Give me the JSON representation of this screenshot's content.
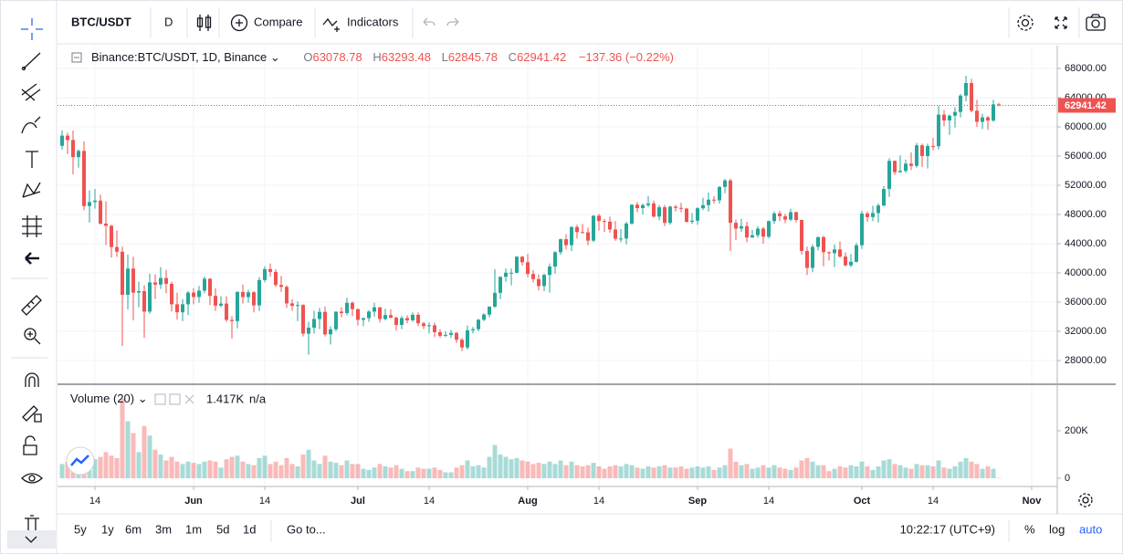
{
  "toolbar": {
    "symbol": "BTC/USDT",
    "interval": "D",
    "compare": "Compare",
    "indicators": "Indicators"
  },
  "legend": {
    "symbol": "Binance:BTC/USDT, 1D, Binance",
    "ohlc": [
      {
        "label": "O",
        "value": "63078.78"
      },
      {
        "label": "H",
        "value": "63293.48"
      },
      {
        "label": "L",
        "value": "62845.78"
      },
      {
        "label": "C",
        "value": "62941.42"
      }
    ],
    "change": "−137.36 (−0.22%)"
  },
  "volume_legend": {
    "title": "Volume (20)",
    "value": "1.417K",
    "ma": "n/a"
  },
  "bottom": {
    "ranges": [
      "5y",
      "1y",
      "6m",
      "3m",
      "1m",
      "5d",
      "1d"
    ],
    "goto": "Go to...",
    "time": "10:22:17 (UTC+9)",
    "scale": [
      "%",
      "log",
      "auto"
    ]
  },
  "chart_data": {
    "type": "candlestick",
    "grid": true,
    "up_color": "#26a69a",
    "down_color": "#ef5350",
    "last_price_color": "#ef5350",
    "categories": [
      null,
      null,
      null,
      null,
      null,
      null,
      "14",
      null,
      null,
      null,
      null,
      null,
      null,
      null,
      null,
      null,
      null,
      null,
      null,
      null,
      null,
      null,
      null,
      null,
      "Jun",
      null,
      null,
      null,
      null,
      null,
      null,
      null,
      null,
      null,
      null,
      null,
      null,
      "14",
      null,
      null,
      null,
      null,
      null,
      null,
      null,
      null,
      null,
      null,
      null,
      null,
      null,
      null,
      null,
      null,
      "Jul",
      null,
      null,
      null,
      null,
      null,
      null,
      null,
      null,
      null,
      null,
      null,
      null,
      "14",
      null,
      null,
      null,
      null,
      null,
      null,
      null,
      null,
      null,
      null,
      null,
      null,
      null,
      null,
      null,
      null,
      null,
      "Aug",
      null,
      null,
      null,
      null,
      null,
      null,
      null,
      null,
      null,
      null,
      null,
      null,
      "14",
      null,
      null,
      null,
      null,
      null,
      null,
      null,
      null,
      null,
      null,
      null,
      null,
      null,
      null,
      null,
      null,
      null,
      "Sep",
      null,
      null,
      null,
      null,
      null,
      null,
      null,
      null,
      null,
      null,
      null,
      null,
      "14",
      null,
      null,
      null,
      null,
      null,
      null,
      null,
      null,
      null,
      null,
      null,
      null,
      null,
      null,
      null,
      null,
      "Oct",
      null,
      null,
      null,
      null,
      null,
      null,
      null,
      null,
      null,
      null,
      null,
      null,
      "14",
      null,
      null,
      null,
      null,
      null,
      null,
      null,
      null,
      null,
      null,
      null,
      null,
      null,
      null,
      null,
      null,
      null,
      "Nov"
    ],
    "ohlc": [
      [
        57400,
        59500,
        56900,
        58800
      ],
      [
        58800,
        59200,
        56300,
        58200
      ],
      [
        58200,
        59500,
        53500,
        55860
      ],
      [
        55860,
        56900,
        54400,
        56700
      ],
      [
        56700,
        58000,
        48600,
        49150
      ],
      [
        49150,
        51300,
        46900,
        49700
      ],
      [
        49700,
        51500,
        48800,
        49900
      ],
      [
        49900,
        50700,
        46600,
        46750
      ],
      [
        46750,
        49800,
        43800,
        46450
      ],
      [
        46450,
        46600,
        42100,
        43540
      ],
      [
        43540,
        45800,
        42200,
        42900
      ],
      [
        42900,
        43600,
        30000,
        37000
      ],
      [
        37000,
        42500,
        35000,
        40590
      ],
      [
        40590,
        42200,
        33500,
        37300
      ],
      [
        37300,
        38800,
        35300,
        37500
      ],
      [
        37500,
        38300,
        31100,
        34700
      ],
      [
        34700,
        39900,
        34400,
        38700
      ],
      [
        38700,
        39800,
        36400,
        38400
      ],
      [
        38400,
        40800,
        37800,
        39300
      ],
      [
        39300,
        40400,
        37200,
        38500
      ],
      [
        38500,
        38800,
        34700,
        35700
      ],
      [
        35700,
        37300,
        33600,
        34600
      ],
      [
        34600,
        36400,
        33400,
        35700
      ],
      [
        35700,
        37500,
        34200,
        37300
      ],
      [
        37300,
        37900,
        35700,
        36700
      ],
      [
        36700,
        38200,
        35900,
        37570
      ],
      [
        37570,
        39500,
        37200,
        39200
      ],
      [
        39200,
        39300,
        35600,
        36850
      ],
      [
        36850,
        37900,
        34800,
        35520
      ],
      [
        35520,
        36800,
        35300,
        35800
      ],
      [
        35800,
        36800,
        33300,
        33560
      ],
      [
        33560,
        34100,
        31000,
        33400
      ],
      [
        33400,
        37500,
        32400,
        37390
      ],
      [
        37390,
        38400,
        35800,
        36690
      ],
      [
        36690,
        37700,
        35900,
        37340
      ],
      [
        37340,
        37500,
        34600,
        35550
      ],
      [
        35550,
        39400,
        34800,
        39020
      ],
      [
        39020,
        40900,
        38700,
        40520
      ],
      [
        40520,
        41300,
        39500,
        40140
      ],
      [
        40140,
        40500,
        38100,
        38350
      ],
      [
        38350,
        39600,
        37400,
        38090
      ],
      [
        38090,
        38300,
        35200,
        35820
      ],
      [
        35820,
        36400,
        34800,
        35480
      ],
      [
        35480,
        36100,
        33400,
        35600
      ],
      [
        35600,
        35700,
        31300,
        31680
      ],
      [
        31680,
        33300,
        28800,
        32500
      ],
      [
        32500,
        34800,
        31700,
        33690
      ],
      [
        33690,
        35200,
        32300,
        34660
      ],
      [
        34660,
        35400,
        31300,
        31590
      ],
      [
        31590,
        32700,
        30200,
        32280
      ],
      [
        32280,
        34700,
        32000,
        34700
      ],
      [
        34700,
        35300,
        33900,
        34490
      ],
      [
        34490,
        36600,
        34200,
        35900
      ],
      [
        35900,
        36100,
        34100,
        35040
      ],
      [
        35040,
        35100,
        32800,
        33570
      ],
      [
        33570,
        33900,
        32700,
        33800
      ],
      [
        33800,
        34900,
        33300,
        34700
      ],
      [
        34700,
        35900,
        34000,
        35290
      ],
      [
        35290,
        35300,
        33200,
        33690
      ],
      [
        33690,
        35100,
        33500,
        34220
      ],
      [
        34220,
        35000,
        33800,
        33860
      ],
      [
        33860,
        34000,
        32100,
        32880
      ],
      [
        32880,
        34100,
        32300,
        33810
      ],
      [
        33810,
        34200,
        33100,
        33510
      ],
      [
        33510,
        34600,
        33300,
        34260
      ],
      [
        34260,
        34600,
        32700,
        33090
      ],
      [
        33090,
        33300,
        32300,
        32720
      ],
      [
        32720,
        33200,
        31700,
        32820
      ],
      [
        32820,
        33200,
        31200,
        31880
      ],
      [
        31880,
        32300,
        31100,
        31380
      ],
      [
        31380,
        32000,
        31200,
        31520
      ],
      [
        31520,
        32200,
        31100,
        31780
      ],
      [
        31780,
        31900,
        30400,
        30840
      ],
      [
        30840,
        31100,
        29300,
        29790
      ],
      [
        29790,
        32800,
        29500,
        32140
      ],
      [
        32140,
        32600,
        31700,
        32290
      ],
      [
        32290,
        33700,
        32000,
        33580
      ],
      [
        33580,
        34500,
        33400,
        34290
      ],
      [
        34290,
        35400,
        33900,
        35380
      ],
      [
        35380,
        40500,
        35200,
        37270
      ],
      [
        37270,
        39500,
        36400,
        39460
      ],
      [
        39460,
        40600,
        38800,
        40020
      ],
      [
        40020,
        40600,
        38300,
        40020
      ],
      [
        40020,
        42300,
        39900,
        42220
      ],
      [
        42220,
        42300,
        41000,
        41460
      ],
      [
        41460,
        42600,
        39400,
        39850
      ],
      [
        39850,
        40400,
        38700,
        39150
      ],
      [
        39150,
        39800,
        37600,
        38200
      ],
      [
        38200,
        39900,
        37500,
        39720
      ],
      [
        39720,
        41300,
        37300,
        40870
      ],
      [
        40870,
        43000,
        39900,
        42830
      ],
      [
        42830,
        44700,
        42500,
        44610
      ],
      [
        44610,
        45300,
        43200,
        43800
      ],
      [
        43800,
        46400,
        43000,
        46280
      ],
      [
        46280,
        46600,
        44700,
        45590
      ],
      [
        45590,
        46700,
        45400,
        45550
      ],
      [
        45550,
        46200,
        43800,
        44420
      ],
      [
        44420,
        47900,
        44200,
        47830
      ],
      [
        47830,
        48100,
        45800,
        47100
      ],
      [
        47100,
        47400,
        45600,
        47020
      ],
      [
        47020,
        47700,
        45500,
        45940
      ],
      [
        45940,
        47100,
        44400,
        44690
      ],
      [
        44690,
        46000,
        44200,
        44710
      ],
      [
        44710,
        47000,
        43900,
        46760
      ],
      [
        46760,
        49400,
        46600,
        49340
      ],
      [
        49340,
        49700,
        48300,
        48870
      ],
      [
        48870,
        49500,
        48000,
        49280
      ],
      [
        49280,
        50500,
        49000,
        49510
      ],
      [
        49510,
        49900,
        47600,
        47710
      ],
      [
        47710,
        49300,
        47200,
        48990
      ],
      [
        48990,
        49300,
        46400,
        46850
      ],
      [
        46850,
        49200,
        46600,
        49070
      ],
      [
        49070,
        49300,
        48400,
        48900
      ],
      [
        48900,
        49600,
        48300,
        48810
      ],
      [
        48810,
        48900,
        46900,
        46990
      ],
      [
        46990,
        48200,
        46700,
        47150
      ],
      [
        47150,
        49000,
        46600,
        48850
      ],
      [
        48850,
        50300,
        48600,
        49280
      ],
      [
        49280,
        51000,
        48400,
        50030
      ],
      [
        50030,
        50500,
        49500,
        49940
      ],
      [
        49940,
        51900,
        49500,
        51770
      ],
      [
        51770,
        52900,
        50900,
        52660
      ],
      [
        52660,
        52900,
        43000,
        46860
      ],
      [
        46860,
        47300,
        44500,
        46070
      ],
      [
        46070,
        47400,
        45600,
        46400
      ],
      [
        46400,
        47000,
        44200,
        44850
      ],
      [
        44850,
        45900,
        44800,
        45160
      ],
      [
        45160,
        46400,
        44800,
        46060
      ],
      [
        46060,
        46300,
        44000,
        44960
      ],
      [
        44960,
        47200,
        44700,
        47090
      ],
      [
        47090,
        48400,
        46700,
        48150
      ],
      [
        48150,
        48500,
        47100,
        47760
      ],
      [
        47760,
        48100,
        46800,
        47300
      ],
      [
        47300,
        48800,
        47100,
        48310
      ],
      [
        48310,
        48400,
        46900,
        47250
      ],
      [
        47250,
        47300,
        42500,
        43010
      ],
      [
        43010,
        43600,
        39700,
        40690
      ],
      [
        40690,
        43900,
        40100,
        43570
      ],
      [
        43570,
        45000,
        43100,
        44890
      ],
      [
        44890,
        45100,
        40900,
        42840
      ],
      [
        42840,
        42900,
        41700,
        42700
      ],
      [
        42700,
        43900,
        40800,
        43210
      ],
      [
        43210,
        44300,
        42100,
        42230
      ],
      [
        42230,
        42800,
        40900,
        41030
      ],
      [
        41030,
        42600,
        40800,
        41520
      ],
      [
        41520,
        44100,
        41400,
        43790
      ],
      [
        43790,
        48500,
        43300,
        48140
      ],
      [
        48140,
        48400,
        47000,
        47640
      ],
      [
        47640,
        49200,
        47100,
        48200
      ],
      [
        48200,
        49500,
        46900,
        49230
      ],
      [
        49230,
        51900,
        49100,
        51490
      ],
      [
        51490,
        55700,
        50400,
        55340
      ],
      [
        55340,
        55400,
        53400,
        53800
      ],
      [
        53800,
        56100,
        53700,
        53970
      ],
      [
        53970,
        55500,
        53700,
        54960
      ],
      [
        54960,
        56500,
        54100,
        54660
      ],
      [
        54660,
        57800,
        54400,
        57470
      ],
      [
        57470,
        57700,
        54500,
        56000
      ],
      [
        56000,
        57700,
        54300,
        57370
      ],
      [
        57370,
        58500,
        56800,
        57350
      ],
      [
        57350,
        62900,
        56900,
        61670
      ],
      [
        61670,
        62300,
        60100,
        60880
      ],
      [
        60880,
        61700,
        58900,
        61530
      ],
      [
        61530,
        62700,
        59900,
        62040
      ],
      [
        62040,
        64500,
        61300,
        64280
      ],
      [
        64280,
        67000,
        63500,
        66000
      ],
      [
        66000,
        66600,
        62000,
        62210
      ],
      [
        62210,
        63700,
        60000,
        60690
      ],
      [
        60690,
        61800,
        59700,
        61300
      ],
      [
        61300,
        61500,
        59600,
        60860
      ],
      [
        60860,
        63700,
        60700,
        63078.78
      ],
      [
        63078.78,
        63293.48,
        62845.78,
        62941.42
      ],
      null,
      null,
      null,
      null,
      null,
      null
    ],
    "volume": [
      60000,
      70000,
      85000,
      75000,
      95000,
      100000,
      80000,
      90000,
      110000,
      95000,
      85000,
      335000,
      240000,
      190000,
      110000,
      220000,
      180000,
      120000,
      100000,
      75000,
      90000,
      70000,
      60000,
      70000,
      65000,
      60000,
      70000,
      75000,
      70000,
      45000,
      80000,
      90000,
      95000,
      70000,
      60000,
      55000,
      85000,
      95000,
      60000,
      70000,
      55000,
      85000,
      60000,
      50000,
      100000,
      120000,
      75000,
      60000,
      95000,
      70000,
      65000,
      55000,
      75000,
      60000,
      60000,
      40000,
      35000,
      45000,
      60000,
      50000,
      45000,
      55000,
      40000,
      30000,
      30000,
      45000,
      40000,
      40000,
      45000,
      35000,
      25000,
      25000,
      45000,
      55000,
      75000,
      50000,
      55000,
      45000,
      90000,
      140000,
      100000,
      90000,
      80000,
      85000,
      75000,
      70000,
      60000,
      65000,
      60000,
      70000,
      60000,
      75000,
      55000,
      70000,
      55000,
      50000,
      55000,
      65000,
      50000,
      40000,
      50000,
      55000,
      50000,
      60000,
      55000,
      45000,
      40000,
      50000,
      45000,
      50000,
      55000,
      45000,
      45000,
      50000,
      40000,
      45000,
      50000,
      45000,
      50000,
      35000,
      45000,
      55000,
      125000,
      70000,
      55000,
      60000,
      40000,
      45000,
      55000,
      45000,
      55000,
      45000,
      40000,
      35000,
      45000,
      75000,
      85000,
      70000,
      55000,
      55000,
      30000,
      40000,
      50000,
      45000,
      55000,
      50000,
      70000,
      50000,
      35000,
      50000,
      75000,
      80000,
      60000,
      55000,
      45000,
      40000,
      60000,
      55000,
      55000,
      50000,
      75000,
      45000,
      40000,
      50000,
      70000,
      85000,
      70000,
      60000,
      40000,
      50000,
      40000,
      1417,
      null,
      null,
      null,
      null,
      null,
      null
    ],
    "ylim": [
      24875,
      71125
    ],
    "yticks": [
      {
        "value": 68000,
        "label": "68000.00"
      },
      {
        "value": 64000,
        "label": "64000.00"
      },
      {
        "value": 60000,
        "label": "60000.00"
      },
      {
        "value": 56000,
        "label": "56000.00"
      },
      {
        "value": 52000,
        "label": "52000.00"
      },
      {
        "value": 48000,
        "label": "48000.00"
      },
      {
        "value": 44000,
        "label": "44000.00"
      },
      {
        "value": 40000,
        "label": "40000.00"
      },
      {
        "value": 36000,
        "label": "36000.00"
      },
      {
        "value": 32000,
        "label": "32000.00"
      },
      {
        "value": 28000,
        "label": "28000.00"
      }
    ],
    "volume_ylim": [
      -34600,
      396000
    ],
    "volume_yticks": [
      {
        "value": 200000,
        "label": "200K"
      },
      0
    ],
    "last_price": 62941.42
  }
}
